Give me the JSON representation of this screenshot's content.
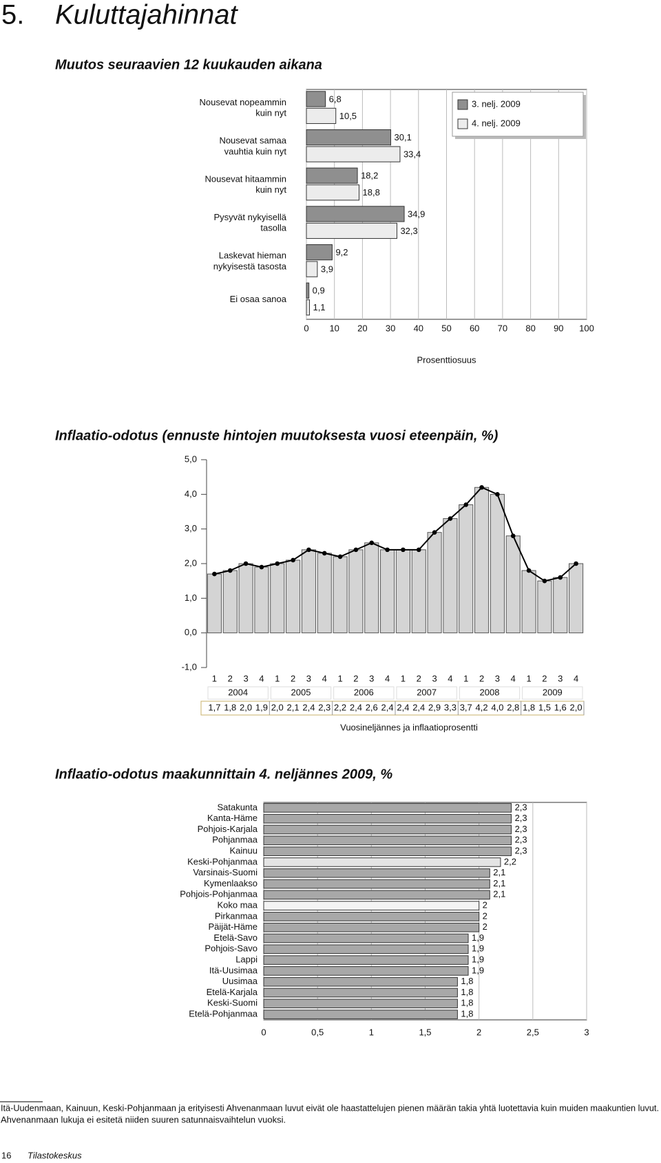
{
  "header": {
    "number": "5.",
    "title": "Kuluttajahinnat"
  },
  "chart_data": [
    {
      "type": "hbar",
      "title": "Muutos seuraavien 12 kuukauden aikana",
      "categories": [
        "Nousevat nopeammin kuin nyt",
        "Nousevat samaa vauhtia kuin nyt",
        "Nousevat hitaammin kuin nyt",
        "Pysyvät nykyisellä tasolla",
        "Laskevat hieman nykyisestä tasosta",
        "Ei osaa sanoa"
      ],
      "series": [
        {
          "name": "3. nelj. 2009",
          "color": "#8f8f8f",
          "values": [
            6.8,
            30.1,
            18.2,
            34.9,
            9.2,
            0.9
          ],
          "value_labels": [
            "6,8",
            "30,1",
            "18,2",
            "34,9",
            "9,2",
            "0,9"
          ]
        },
        {
          "name": "4. nelj. 2009",
          "color": "#ececec",
          "values": [
            10.5,
            33.4,
            18.8,
            32.3,
            3.9,
            1.1
          ],
          "value_labels": [
            "10,5",
            "33,4",
            "18,8",
            "32,3",
            "3,9",
            "1,1"
          ]
        }
      ],
      "xlim": [
        0,
        100
      ],
      "xticks": [
        0,
        10,
        20,
        30,
        40,
        50,
        60,
        70,
        80,
        90,
        100
      ],
      "x_label": "Prosenttiosuus",
      "legend": "upper right",
      "grid": true
    },
    {
      "type": "combo",
      "title": "Inflaatio-odotus (ennuste hintojen muutoksesta vuosi eteenpäin, %)",
      "categories": [
        "1",
        "2",
        "3",
        "4",
        "1",
        "2",
        "3",
        "4",
        "1",
        "2",
        "3",
        "4",
        "1",
        "2",
        "3",
        "4",
        "1",
        "2",
        "3",
        "4",
        "1",
        "2",
        "3",
        "4"
      ],
      "groups": [
        "2004",
        "2005",
        "2006",
        "2007",
        "2008",
        "2009"
      ],
      "values": [
        1.7,
        1.8,
        2.0,
        1.9,
        2.0,
        2.1,
        2.4,
        2.3,
        2.2,
        2.4,
        2.6,
        2.4,
        2.4,
        2.4,
        2.9,
        3.3,
        3.7,
        4.2,
        4.0,
        2.8,
        1.8,
        1.5,
        1.6,
        2.0
      ],
      "value_labels": [
        "1,7",
        "1,8",
        "2,0",
        "1,9",
        "2,0",
        "2,1",
        "2,4",
        "2,3",
        "2,2",
        "2,4",
        "2,6",
        "2,4",
        "2,4",
        "2,4",
        "2,9",
        "3,3",
        "3,7",
        "4,2",
        "4,0",
        "2,8",
        "1,8",
        "1,5",
        "1,6",
        "2,0"
      ],
      "bar_color": "#d4d4d4",
      "line_color": "#000000",
      "ylim": [
        -1,
        5
      ],
      "yticks": [
        {
          "value": -1,
          "label": "-1,0"
        },
        {
          "value": 0,
          "label": "0,0"
        },
        {
          "value": 1,
          "label": "1,0"
        },
        {
          "value": 2,
          "label": "2,0"
        },
        {
          "value": 3,
          "label": "3,0"
        },
        {
          "value": 4,
          "label": "4,0"
        },
        {
          "value": 5,
          "label": "5,0"
        }
      ],
      "x_label": "Vuosineljännes ja inflaatioprosentti"
    },
    {
      "type": "hbar",
      "title": "Inflaatio-odotus maakunnittain 4. neljännes 2009, %",
      "categories": [
        "Satakunta",
        "Kanta-Häme",
        "Pohjois-Karjala",
        "Pohjanmaa",
        "Kainuu",
        "Keski-Pohjanmaa",
        "Varsinais-Suomi",
        "Kymenlaakso",
        "Pohjois-Pohjanmaa",
        "Koko maa",
        "Pirkanmaa",
        "Päijät-Häme",
        "Etelä-Savo",
        "Pohjois-Savo",
        "Lappi",
        "Itä-Uusimaa",
        "Uusimaa",
        "Etelä-Karjala",
        "Keski-Suomi",
        "Etelä-Pohjanmaa"
      ],
      "values": [
        2.3,
        2.3,
        2.3,
        2.3,
        2.3,
        2.2,
        2.1,
        2.1,
        2.1,
        2,
        2,
        2,
        1.9,
        1.9,
        1.9,
        1.9,
        1.8,
        1.8,
        1.8,
        1.8
      ],
      "value_labels": [
        "2,3",
        "2,3",
        "2,3",
        "2,3",
        "2,3",
        "2,2",
        "2,1",
        "2,1",
        "2,1",
        "2",
        "2",
        "2",
        "1,9",
        "1,9",
        "1,9",
        "1,9",
        "1,8",
        "1,8",
        "1,8",
        "1,8"
      ],
      "colors": [
        "#a8a8a8",
        "#a8a8a8",
        "#a8a8a8",
        "#a8a8a8",
        "#a8a8a8",
        "#e4e4e4",
        "#a8a8a8",
        "#a8a8a8",
        "#a8a8a8",
        "#f4f4f4",
        "#a8a8a8",
        "#a8a8a8",
        "#a8a8a8",
        "#a8a8a8",
        "#a8a8a8",
        "#a8a8a8",
        "#a8a8a8",
        "#a8a8a8",
        "#a8a8a8",
        "#a8a8a8"
      ],
      "xlim": [
        0,
        3
      ],
      "xticks": [
        0,
        {
          "value": 0.5,
          "label": "0,5"
        },
        1,
        {
          "value": 1.5,
          "label": "1,5"
        },
        2,
        {
          "value": 2.5,
          "label": "2,5"
        },
        3
      ],
      "grid": true
    }
  ],
  "footnote": [
    "Itä-Uudenmaan, Kainuun, Keski-Pohjanmaan ja erityisesti Ahvenanmaan luvut eivät ole haastattelujen pienen määrän takia yhtä luotettavia kuin muiden maakuntien luvut.",
    "Ahvenanmaan lukuja ei esitetä niiden suuren satunnaisvaihtelun vuoksi."
  ],
  "footer": {
    "page": "16",
    "publisher": "Tilastokeskus"
  }
}
